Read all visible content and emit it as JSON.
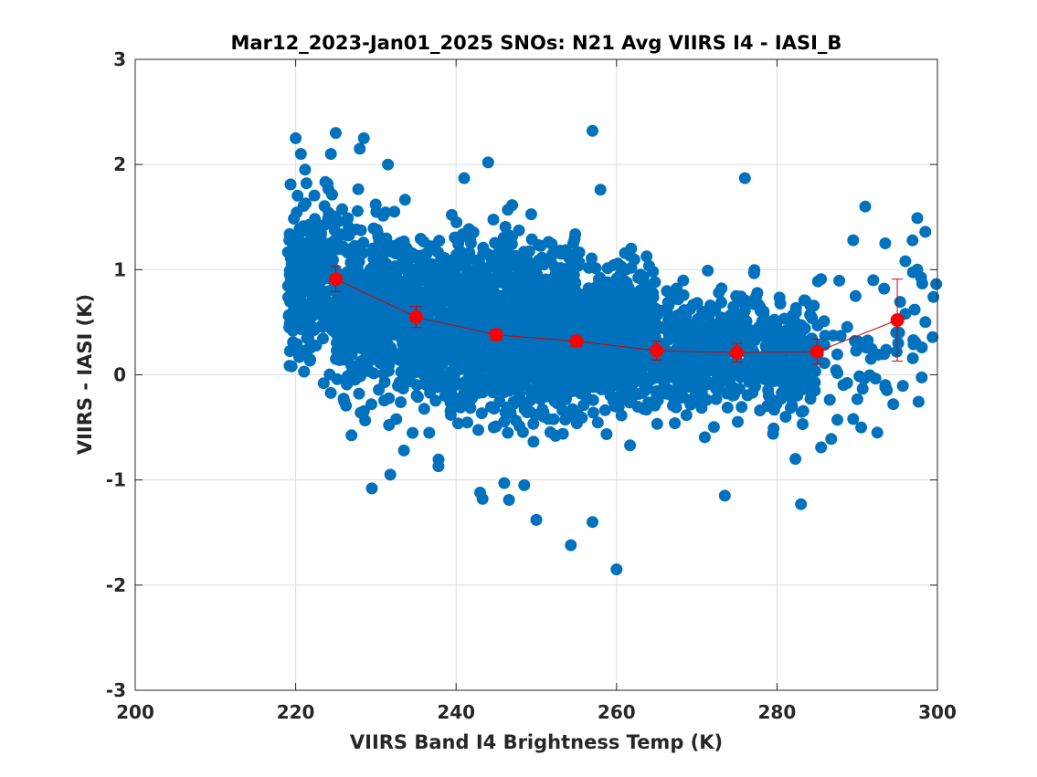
{
  "chart_data": {
    "type": "scatter",
    "title": "Mar12_2023-Jan01_2025 SNOs: N21 Avg VIIRS I4 - IASI_B",
    "xlabel": "VIIRS Band I4 Brightness Temp (K)",
    "ylabel": "VIIRS - IASI (K)",
    "xlim": [
      200,
      300
    ],
    "ylim": [
      -3,
      3
    ],
    "xticks": [
      200,
      220,
      240,
      260,
      280,
      300
    ],
    "yticks": [
      -3,
      -2,
      -1,
      0,
      1,
      2,
      3
    ],
    "xtick_labels": [
      "200",
      "220",
      "240",
      "260",
      "280",
      "300"
    ],
    "ytick_labels": [
      "-3",
      "-2",
      "-1",
      "0",
      "1",
      "2",
      "3"
    ],
    "grid": true,
    "legend": "none",
    "colors": {
      "scatter": "#0072BD",
      "mean": "#FF0000",
      "errorbar": "#D00000"
    },
    "scatter_density": [
      {
        "x0": 219,
        "x1": 225,
        "y_mean": 0.95,
        "y_sd": 0.42,
        "n": 260
      },
      {
        "x0": 225,
        "x1": 235,
        "y_mean": 0.62,
        "y_sd": 0.42,
        "n": 520
      },
      {
        "x0": 235,
        "x1": 245,
        "y_mean": 0.48,
        "y_sd": 0.4,
        "n": 700
      },
      {
        "x0": 245,
        "x1": 255,
        "y_mean": 0.42,
        "y_sd": 0.4,
        "n": 800
      },
      {
        "x0": 255,
        "x1": 265,
        "y_mean": 0.34,
        "y_sd": 0.34,
        "n": 560
      },
      {
        "x0": 265,
        "x1": 275,
        "y_mean": 0.22,
        "y_sd": 0.28,
        "n": 300
      },
      {
        "x0": 275,
        "x1": 285,
        "y_mean": 0.18,
        "y_sd": 0.28,
        "n": 240
      },
      {
        "x0": 285,
        "x1": 300,
        "y_mean": 0.35,
        "y_sd": 0.42,
        "n": 60
      }
    ],
    "scatter_outliers": [
      {
        "x": 220,
        "y": 2.25
      },
      {
        "x": 225,
        "y": 2.3
      },
      {
        "x": 228.5,
        "y": 2.25
      },
      {
        "x": 228,
        "y": 2.15
      },
      {
        "x": 231.5,
        "y": 2.0
      },
      {
        "x": 244,
        "y": 2.02
      },
      {
        "x": 257,
        "y": 2.32
      },
      {
        "x": 258,
        "y": 1.76
      },
      {
        "x": 276,
        "y": 1.87
      },
      {
        "x": 241,
        "y": 1.87
      },
      {
        "x": 291,
        "y": 1.6
      },
      {
        "x": 297.5,
        "y": 1.49
      },
      {
        "x": 298.5,
        "y": 1.36
      },
      {
        "x": 296,
        "y": 1.08
      },
      {
        "x": 297.5,
        "y": 1.0
      },
      {
        "x": 299.5,
        "y": 0.74
      },
      {
        "x": 289.5,
        "y": 1.28
      },
      {
        "x": 293.5,
        "y": 1.25
      },
      {
        "x": 229.5,
        "y": -1.08
      },
      {
        "x": 231.8,
        "y": -0.95
      },
      {
        "x": 233.5,
        "y": -0.72
      },
      {
        "x": 237.8,
        "y": -0.87
      },
      {
        "x": 243,
        "y": -1.12
      },
      {
        "x": 243.3,
        "y": -1.18
      },
      {
        "x": 246,
        "y": -1.03
      },
      {
        "x": 246.6,
        "y": -1.19
      },
      {
        "x": 248.5,
        "y": -1.05
      },
      {
        "x": 250,
        "y": -1.38
      },
      {
        "x": 254.3,
        "y": -1.62
      },
      {
        "x": 257,
        "y": -1.4
      },
      {
        "x": 260,
        "y": -1.85
      },
      {
        "x": 273.5,
        "y": -1.15
      },
      {
        "x": 283,
        "y": -1.23
      },
      {
        "x": 282.3,
        "y": -0.8
      },
      {
        "x": 285.5,
        "y": -0.69
      },
      {
        "x": 289.5,
        "y": -0.42
      },
      {
        "x": 290.5,
        "y": -0.5
      },
      {
        "x": 292.5,
        "y": -0.55
      },
      {
        "x": 294.5,
        "y": -0.28
      },
      {
        "x": 293.5,
        "y": -0.12
      },
      {
        "x": 223.5,
        "y": -0.08
      },
      {
        "x": 219.5,
        "y": 0.08
      },
      {
        "x": 292,
        "y": 0.9
      },
      {
        "x": 296,
        "y": 0.58
      },
      {
        "x": 297,
        "y": 0.33
      }
    ],
    "series": [
      {
        "x": [
          225,
          235,
          245,
          255,
          265,
          275,
          285,
          295
        ],
        "y": [
          0.91,
          0.55,
          0.38,
          0.32,
          0.23,
          0.21,
          0.22,
          0.52
        ],
        "err": [
          0.12,
          0.1,
          0.05,
          0.05,
          0.09,
          0.09,
          0.12,
          0.39
        ]
      }
    ]
  }
}
